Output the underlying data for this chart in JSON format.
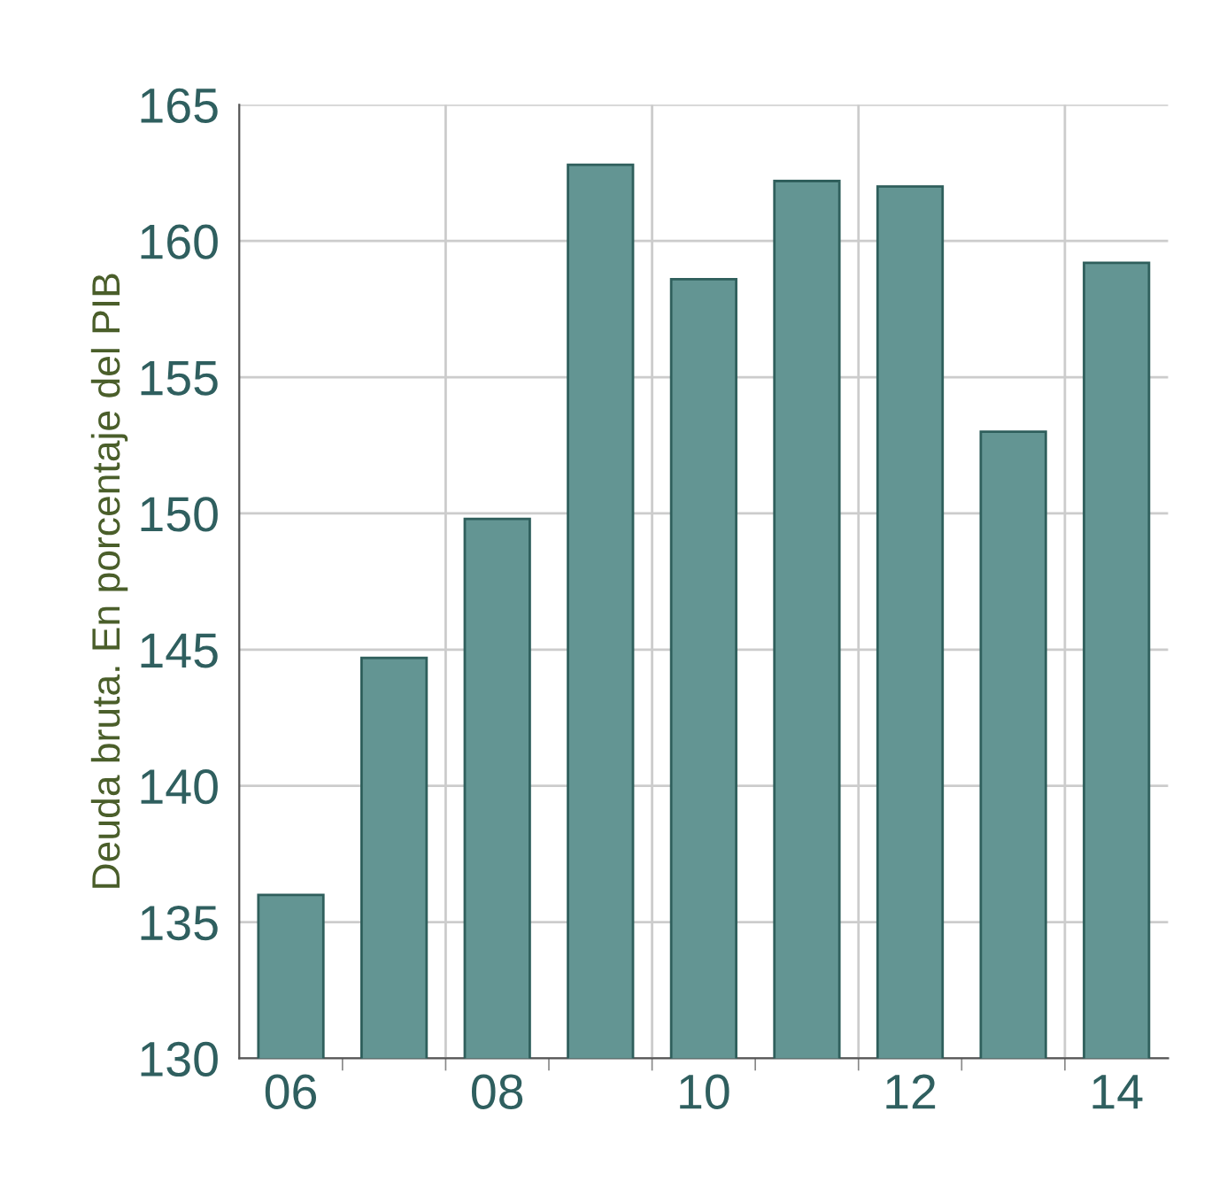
{
  "chart_data": {
    "type": "bar",
    "ylabel": "Deuda bruta. En porcentaje del PIB",
    "categories": [
      "06",
      null,
      "08",
      null,
      "10",
      null,
      "12",
      null,
      "14"
    ],
    "values": [
      136.0,
      144.7,
      149.8,
      162.8,
      158.6,
      162.2,
      162.0,
      153.0,
      159.2
    ],
    "color": "#639593",
    "ylim": [
      130,
      165
    ],
    "yticks": [
      130,
      135,
      140,
      145,
      150,
      155,
      160,
      165
    ],
    "grid": true
  }
}
